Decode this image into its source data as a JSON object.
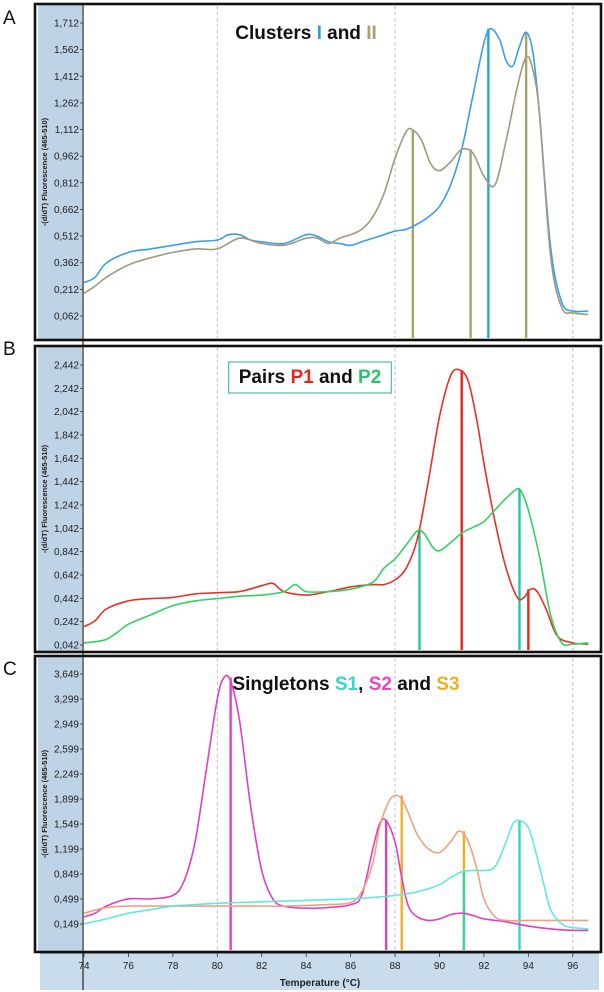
{
  "chart_data": [
    {
      "panel": "A",
      "type": "line",
      "title_parts": [
        {
          "text": "Clusters ",
          "color": "#111111"
        },
        {
          "text": "I",
          "color": "#2aa3c8"
        },
        {
          "text": " and ",
          "color": "#111111"
        },
        {
          "text": "II",
          "color": "#a5a36a"
        }
      ],
      "title_boxed": false,
      "ylabel": "-(d/dT) Fluorescence (465-510)",
      "yticks": [
        "1,712",
        "1,562",
        "1,412",
        "1,262",
        "1,112",
        "0,962",
        "0,812",
        "0,662",
        "0,512",
        "0,362",
        "0,212",
        "0,062"
      ],
      "ylim": [
        0.0,
        1.76
      ],
      "xlim": [
        74,
        97
      ],
      "series": [
        {
          "color": "#3b9ee6",
          "x": [
            74,
            74.5,
            75,
            76,
            77,
            78,
            79,
            80,
            80.5,
            81,
            81.5,
            82,
            83,
            84,
            84.5,
            85,
            85.5,
            86,
            86.5,
            87,
            87.5,
            88,
            88.5,
            89,
            89.5,
            90,
            90.5,
            91,
            91.5,
            92,
            92.3,
            92.7,
            93,
            93.3,
            93.6,
            93.9,
            94.2,
            94.5,
            95,
            95.5,
            96,
            96.7
          ],
          "y": [
            0.25,
            0.28,
            0.36,
            0.42,
            0.44,
            0.46,
            0.48,
            0.49,
            0.52,
            0.52,
            0.49,
            0.48,
            0.47,
            0.52,
            0.51,
            0.48,
            0.47,
            0.46,
            0.48,
            0.5,
            0.52,
            0.54,
            0.55,
            0.58,
            0.62,
            0.68,
            0.8,
            1.0,
            1.3,
            1.6,
            1.68,
            1.62,
            1.5,
            1.47,
            1.58,
            1.66,
            1.55,
            1.2,
            0.45,
            0.14,
            0.09,
            0.09
          ]
        },
        {
          "color": "#a09a80",
          "x": [
            74,
            74.5,
            75,
            76,
            77,
            78,
            79,
            80,
            81,
            82,
            83,
            84,
            84.5,
            85,
            85.5,
            86,
            86.5,
            87,
            87.5,
            88,
            88.5,
            88.8,
            89.2,
            89.6,
            90,
            90.5,
            91,
            91.5,
            92,
            92.5,
            93,
            93.5,
            93.9,
            94.2,
            94.5,
            95,
            95.5,
            96,
            96.7
          ],
          "y": [
            0.19,
            0.23,
            0.28,
            0.35,
            0.39,
            0.42,
            0.44,
            0.44,
            0.5,
            0.47,
            0.46,
            0.5,
            0.5,
            0.47,
            0.5,
            0.52,
            0.55,
            0.62,
            0.75,
            0.95,
            1.1,
            1.11,
            1.05,
            0.92,
            0.88,
            0.93,
            1.0,
            0.98,
            0.85,
            0.8,
            1.05,
            1.35,
            1.52,
            1.45,
            1.2,
            0.4,
            0.11,
            0.08,
            0.07
          ]
        }
      ],
      "vlines": [
        {
          "x": 88.8,
          "top": 1.11,
          "color": "#a5a36a"
        },
        {
          "x": 91.4,
          "top": 1.0,
          "color": "#a5a36a"
        },
        {
          "x": 92.2,
          "top": 1.68,
          "color": "#22a9c6"
        },
        {
          "x": 93.9,
          "top": 1.66,
          "color": "#a5a36a"
        }
      ]
    },
    {
      "panel": "B",
      "type": "line",
      "title_parts": [
        {
          "text": "Pairs ",
          "color": "#111111"
        },
        {
          "text": "P1",
          "color": "#e8251d"
        },
        {
          "text": " and ",
          "color": "#111111"
        },
        {
          "text": "P2",
          "color": "#2ac46a"
        }
      ],
      "title_boxed": true,
      "ylabel": "-(d/dT) Fluorescence (465-510)",
      "yticks": [
        "2,442",
        "2,242",
        "2,042",
        "1,842",
        "1,642",
        "1,442",
        "1,242",
        "1,042",
        "0,842",
        "0,642",
        "0,442",
        "0,242",
        "0,042"
      ],
      "ylim": [
        0.0,
        2.52
      ],
      "xlim": [
        74,
        97
      ],
      "series": [
        {
          "color": "#e8302a",
          "x": [
            74,
            74.5,
            75,
            76,
            77,
            78,
            79,
            80,
            81,
            82,
            82.5,
            83,
            84,
            85,
            86,
            87,
            87.5,
            88,
            88.5,
            89,
            89.5,
            90,
            90.5,
            90.9,
            91.3,
            91.7,
            92,
            92.5,
            93,
            93.5,
            93.8,
            94.1,
            94.4,
            94.8,
            95.3,
            96,
            96.7
          ],
          "y": [
            0.2,
            0.25,
            0.35,
            0.42,
            0.44,
            0.45,
            0.48,
            0.49,
            0.5,
            0.55,
            0.57,
            0.5,
            0.47,
            0.5,
            0.54,
            0.56,
            0.56,
            0.6,
            0.7,
            0.95,
            1.45,
            2.0,
            2.35,
            2.4,
            2.3,
            1.95,
            1.6,
            1.1,
            0.7,
            0.45,
            0.45,
            0.52,
            0.5,
            0.35,
            0.12,
            0.06,
            0.05
          ]
        },
        {
          "color": "#34d060",
          "x": [
            74,
            74.5,
            75,
            75.5,
            76,
            77,
            78,
            79,
            80,
            81,
            82,
            83,
            83.5,
            84,
            85,
            86,
            87,
            87.5,
            88,
            88.5,
            89,
            89.3,
            89.7,
            90,
            90.5,
            91,
            91.5,
            92,
            92.5,
            93,
            93.5,
            93.7,
            94,
            94.5,
            95,
            95.5,
            96,
            96.7
          ],
          "y": [
            0.06,
            0.07,
            0.09,
            0.15,
            0.22,
            0.3,
            0.38,
            0.42,
            0.44,
            0.46,
            0.47,
            0.5,
            0.56,
            0.5,
            0.5,
            0.52,
            0.58,
            0.7,
            0.78,
            0.9,
            1.02,
            1.0,
            0.88,
            0.85,
            0.92,
            1.0,
            1.05,
            1.1,
            1.2,
            1.3,
            1.38,
            1.35,
            1.2,
            0.8,
            0.3,
            0.06,
            0.05,
            0.06
          ]
        }
      ],
      "vlines": [
        {
          "x": 89.1,
          "top": 1.02,
          "color": "#1fc8a8"
        },
        {
          "x": 91.0,
          "top": 2.4,
          "color": "#e8251d"
        },
        {
          "x": 93.6,
          "top": 1.38,
          "color": "#1fc8a8"
        },
        {
          "x": 94.0,
          "top": 0.52,
          "color": "#e8251d"
        }
      ]
    },
    {
      "panel": "C",
      "type": "line",
      "title_parts": [
        {
          "text": "Singletons ",
          "color": "#111111"
        },
        {
          "text": "S1",
          "color": "#34d6d0"
        },
        {
          "text": ", ",
          "color": "#111111"
        },
        {
          "text": "S2",
          "color": "#e646c8"
        },
        {
          "text": " and ",
          "color": "#111111"
        },
        {
          "text": "S3",
          "color": "#f0b020"
        }
      ],
      "title_boxed": false,
      "ylabel": "-(d/dT) Fluorescence (465-510)",
      "yticks": [
        "3,649",
        "3,299",
        "2,949",
        "2,599",
        "2,249",
        "1,899",
        "1,549",
        "1,199",
        "0,849",
        "0,499",
        "0,149"
      ],
      "ylim": [
        -0.18,
        3.85
      ],
      "xlim": [
        74,
        97
      ],
      "xticks": [
        "74",
        "76",
        "78",
        "80",
        "82",
        "84",
        "86",
        "88",
        "90",
        "92",
        "94",
        "96"
      ],
      "xlabel": "Temperature (°C)",
      "series": [
        {
          "color": "#e040c0",
          "x": [
            74,
            74.5,
            75,
            76,
            77,
            78,
            78.5,
            79,
            79.5,
            80,
            80.3,
            80.6,
            81,
            81.5,
            82,
            82.5,
            83,
            84,
            85,
            86,
            86.5,
            87,
            87.3,
            87.6,
            88,
            88.3,
            88.6,
            89,
            89.5,
            90,
            90.5,
            91,
            91.5,
            92,
            93,
            94,
            95,
            96,
            96.7
          ],
          "y": [
            0.25,
            0.3,
            0.4,
            0.5,
            0.5,
            0.55,
            0.75,
            1.3,
            2.3,
            3.3,
            3.6,
            3.55,
            3.0,
            1.8,
            0.9,
            0.5,
            0.4,
            0.37,
            0.38,
            0.42,
            0.55,
            1.2,
            1.55,
            1.6,
            1.3,
            0.8,
            0.4,
            0.25,
            0.2,
            0.22,
            0.28,
            0.3,
            0.27,
            0.22,
            0.18,
            0.12,
            0.08,
            0.06,
            0.06
          ]
        },
        {
          "color": "#f0a080",
          "x": [
            74,
            75,
            76,
            77,
            78,
            79,
            80,
            81,
            82,
            83,
            84,
            85,
            86,
            86.5,
            87,
            87.3,
            87.7,
            88,
            88.3,
            88.6,
            89,
            89.5,
            90,
            90.5,
            90.9,
            91.3,
            91.7,
            92,
            92.5,
            93,
            94,
            95,
            96,
            96.7
          ],
          "y": [
            0.3,
            0.38,
            0.4,
            0.4,
            0.4,
            0.4,
            0.4,
            0.4,
            0.4,
            0.4,
            0.41,
            0.42,
            0.45,
            0.6,
            1.0,
            1.5,
            1.85,
            1.95,
            1.9,
            1.7,
            1.4,
            1.2,
            1.15,
            1.3,
            1.45,
            1.3,
            0.9,
            0.5,
            0.25,
            0.2,
            0.2,
            0.2,
            0.2,
            0.2
          ]
        },
        {
          "color": "#60e8e0",
          "x": [
            74,
            75,
            76,
            77,
            78,
            79,
            80,
            81,
            82,
            83,
            84,
            85,
            86,
            87,
            88,
            89,
            90,
            90.5,
            91,
            91.5,
            92,
            92.5,
            93,
            93.3,
            93.6,
            94,
            94.3,
            94.7,
            95,
            95.5,
            96,
            96.7
          ],
          "y": [
            0.15,
            0.22,
            0.3,
            0.35,
            0.4,
            0.42,
            0.44,
            0.45,
            0.46,
            0.47,
            0.48,
            0.49,
            0.5,
            0.52,
            0.55,
            0.6,
            0.7,
            0.8,
            0.88,
            0.9,
            0.9,
            0.95,
            1.3,
            1.55,
            1.6,
            1.5,
            1.2,
            0.7,
            0.35,
            0.15,
            0.1,
            0.08
          ]
        }
      ],
      "vlines": [
        {
          "x": 80.6,
          "top": 3.6,
          "color": "#e040c0"
        },
        {
          "x": 87.6,
          "top": 1.6,
          "color": "#e040c0"
        },
        {
          "x": 88.3,
          "top": 1.95,
          "color": "#f0b020"
        },
        {
          "x": 91.1,
          "top": 1.45,
          "color": "#f0b020"
        },
        {
          "x": 91.1,
          "top": 0.88,
          "color": "#34d6a0"
        },
        {
          "x": 93.6,
          "top": 1.6,
          "color": "#34d6c0"
        }
      ]
    }
  ]
}
